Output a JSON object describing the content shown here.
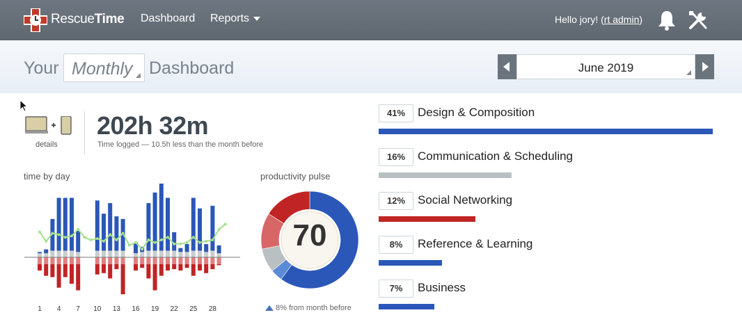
{
  "nav": {
    "logo_text_light": "Rescue",
    "logo_text_bold": "Time",
    "dashboard": "Dashboard",
    "reports": "Reports",
    "greeting_prefix": "Hello jory! (",
    "greeting_link": "rt admin",
    "greeting_suffix": ")"
  },
  "header": {
    "your": "Your",
    "period": "Monthly",
    "dashboard": "Dashboard",
    "date": "June 2019"
  },
  "summary": {
    "details": "details",
    "total": "202h 32m",
    "subtitle": "Time logged — 10.5h less than the month before"
  },
  "labels": {
    "time_by_day": "time by day",
    "productivity_pulse": "productivity pulse"
  },
  "pulse": {
    "value": "70",
    "note": "8% from month before",
    "segments": [
      {
        "value": 0.6,
        "color": "#2a57b8"
      },
      {
        "value": 0.04,
        "color": "#5b8ad6"
      },
      {
        "value": 0.08,
        "color": "#b9c0c2"
      },
      {
        "value": 0.12,
        "color": "#d96666"
      },
      {
        "value": 0.16,
        "color": "#c02424"
      }
    ]
  },
  "colors": {
    "productive": "#2a57b8",
    "productive_light": "#7a9de0",
    "neutral": "#c9cdd0",
    "distracting": "#c02424",
    "distracting_light": "#e08080",
    "trend": "#a6e08a"
  },
  "chart_data": {
    "type": "bar",
    "x_tick_labels": [
      "1",
      "4",
      "7",
      "10",
      "13",
      "16",
      "19",
      "22",
      "25",
      "28"
    ],
    "days": [
      1,
      2,
      3,
      4,
      5,
      6,
      7,
      8,
      9,
      10,
      11,
      12,
      13,
      14,
      15,
      16,
      17,
      18,
      19,
      20,
      21,
      22,
      23,
      24,
      25,
      26,
      27,
      28,
      29,
      30
    ],
    "productive": [
      0.1,
      0.3,
      2.4,
      4.0,
      4.0,
      4.0,
      1.6,
      0,
      0,
      3.8,
      2.8,
      3.6,
      2.6,
      2.4,
      0,
      0.8,
      0.4,
      3.6,
      4.4,
      5.2,
      4.0,
      1.4,
      0.3,
      0.6,
      4.0,
      3.2,
      0.6,
      3.4,
      0.6,
      0
    ],
    "neutral": [
      0.3,
      0.3,
      0.5,
      0.5,
      0.5,
      0.5,
      0.4,
      0,
      0,
      0.5,
      0.5,
      0.5,
      0.5,
      0.5,
      0,
      0.3,
      0.4,
      0.5,
      0.5,
      0.5,
      0.5,
      0.5,
      0.4,
      0.4,
      0.5,
      0.5,
      0.4,
      0.5,
      0.3,
      0
    ],
    "distracting": [
      -1.0,
      -1.4,
      -1.5,
      -2.3,
      -1.5,
      -2.0,
      -2.5,
      0,
      0,
      -1.3,
      -1.2,
      -1.6,
      -0.9,
      -2.8,
      0,
      -1.0,
      -0.8,
      -1.6,
      -2.5,
      -1.4,
      -1.0,
      -0.9,
      -1.0,
      -0.8,
      -1.4,
      -1.0,
      -1.2,
      -0.9,
      -0.6,
      0
    ],
    "trend": [
      1.6,
      0.9,
      1.5,
      1.4,
      1.2,
      1.3,
      1.8,
      1.2,
      1.0,
      1.1,
      0.9,
      1.4,
      1.0,
      1.5,
      0.6,
      0.8,
      0.3,
      1.0,
      0.8,
      1.0,
      1.2,
      0.7,
      0.7,
      0.8,
      1.2,
      0.8,
      0.9,
      1.0,
      1.8,
      2.2
    ]
  },
  "categories": [
    {
      "pct": "41%",
      "name": "Design & Composition",
      "share": 1.0,
      "color": "#2a57b8"
    },
    {
      "pct": "16%",
      "name": "Communication & Scheduling",
      "share": 0.397,
      "color": "#b9c0c2"
    },
    {
      "pct": "12%",
      "name": "Social Networking",
      "share": 0.29,
      "color": "#c02424"
    },
    {
      "pct": "8%",
      "name": "Reference & Learning",
      "share": 0.19,
      "color": "#2a57b8"
    },
    {
      "pct": "7%",
      "name": "Business",
      "share": 0.167,
      "color": "#2a57b8"
    }
  ]
}
